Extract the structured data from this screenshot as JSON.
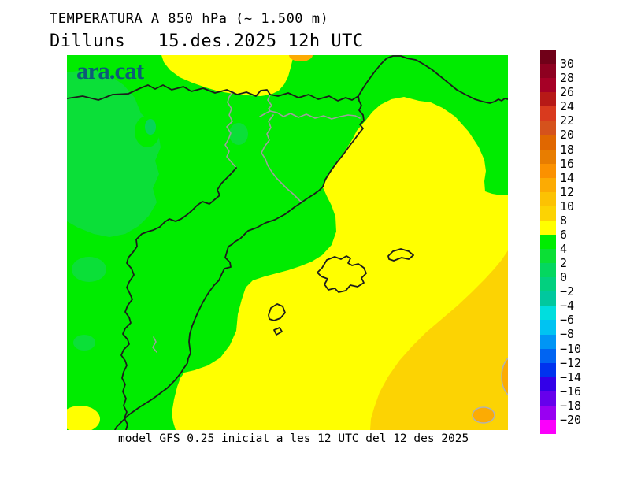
{
  "header": {
    "title": "TEMPERATURA A 850 hPa (~ 1.500 m)",
    "subtitle": "Dilluns   15.des.2025 12h UTC"
  },
  "footer": {
    "caption": "model GFS 0.25 iniciat a les 12 UTC del 12 des 2025"
  },
  "map": {
    "logo": "ara.cat"
  },
  "scale": {
    "tick_labels": [
      "30",
      "28",
      "26",
      "24",
      "22",
      "20",
      "18",
      "16",
      "14",
      "12",
      "10",
      "8",
      "6",
      "4",
      "2",
      "0",
      "−2",
      "−4",
      "−6",
      "−8",
      "−10",
      "−12",
      "−14",
      "−16",
      "−18",
      "−20"
    ],
    "segment_colors": [
      "#700018",
      "#8e0020",
      "#a60026",
      "#b71917",
      "#d93a1e",
      "#d5521c",
      "#e06700",
      "#e87d00",
      "#fb9100",
      "#fcab03",
      "#fcc203",
      "#fcd303",
      "#ffff00",
      "#00ed00",
      "#0bdf35",
      "#04d75f",
      "#02d07f",
      "#01c89e",
      "#00dede",
      "#00c3f2",
      "#0095f5",
      "#0064f2",
      "#0033ee",
      "#3300e8",
      "#6600ec",
      "#9900f2",
      "#fb00fb"
    ]
  },
  "palette": {
    "green_main": "#00ec00",
    "green_cold": "#0bdf38",
    "green_core": "#06d459",
    "yellow": "#ffff00",
    "gold": "#fcd303",
    "orange": "#fcab03",
    "line_black": "#1c1c1c",
    "line_gray": "#9e9e9e",
    "contour_gray": "#b2b2b2",
    "logo_color": "#0d5a78",
    "text_color": "#000000"
  }
}
